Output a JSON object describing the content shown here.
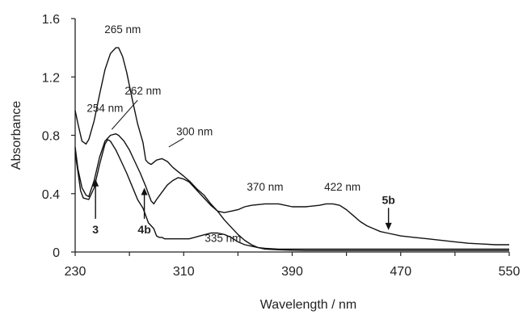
{
  "chart_data": {
    "type": "line",
    "xlabel": "Wavelength / nm",
    "ylabel": "Absorbance",
    "xlim": [
      230,
      550
    ],
    "ylim": [
      0,
      1.6
    ],
    "xticks": [
      "230",
      "270",
      "310",
      "350",
      "390",
      "430",
      "470",
      "510",
      "550"
    ],
    "x_tick_labels_shown": [
      "230",
      "310",
      "390",
      "470",
      "550"
    ],
    "yticks": [
      "0",
      "0.4",
      "0.8",
      "1.2",
      "1.6"
    ],
    "grid": false,
    "series": [
      {
        "name": "3",
        "x": [
          230,
          232,
          235,
          238,
          240,
          244,
          248,
          252,
          256,
          260,
          262,
          265,
          268,
          272,
          276,
          280,
          282,
          284,
          286,
          290,
          294,
          298,
          302,
          306,
          310,
          315,
          320,
          325,
          330,
          335,
          340,
          345,
          350,
          355,
          360,
          365,
          370,
          380,
          390,
          400,
          420,
          450,
          480,
          520,
          550
        ],
        "y": [
          0.97,
          0.88,
          0.76,
          0.74,
          0.77,
          0.9,
          1.08,
          1.25,
          1.36,
          1.4,
          1.4,
          1.34,
          1.23,
          1.05,
          0.88,
          0.75,
          0.63,
          0.61,
          0.6,
          0.63,
          0.64,
          0.62,
          0.58,
          0.55,
          0.52,
          0.48,
          0.43,
          0.39,
          0.33,
          0.28,
          0.22,
          0.17,
          0.12,
          0.08,
          0.05,
          0.03,
          0.02,
          0.015,
          0.012,
          0.01,
          0.01,
          0.01,
          0.01,
          0.01,
          0.01
        ]
      },
      {
        "name": "4b",
        "x": [
          230,
          232,
          234,
          236,
          240,
          244,
          248,
          252,
          254,
          256,
          260,
          264,
          268,
          272,
          276,
          280,
          282,
          284,
          286,
          288,
          290,
          292,
          294,
          296,
          298,
          300,
          302,
          304,
          306,
          310,
          314,
          318,
          322,
          326,
          330,
          335,
          340,
          345,
          350,
          355,
          360,
          365,
          370,
          380,
          390,
          400,
          420,
          450,
          480,
          520,
          550
        ],
        "y": [
          0.68,
          0.55,
          0.42,
          0.37,
          0.36,
          0.44,
          0.6,
          0.74,
          0.77,
          0.76,
          0.7,
          0.62,
          0.54,
          0.45,
          0.36,
          0.3,
          0.25,
          0.2,
          0.18,
          0.16,
          0.11,
          0.1,
          0.1,
          0.09,
          0.09,
          0.09,
          0.09,
          0.09,
          0.09,
          0.09,
          0.09,
          0.1,
          0.11,
          0.12,
          0.13,
          0.13,
          0.12,
          0.1,
          0.07,
          0.05,
          0.04,
          0.03,
          0.025,
          0.02,
          0.02,
          0.02,
          0.02,
          0.02,
          0.02,
          0.02,
          0.02
        ]
      },
      {
        "name": "5b",
        "x": [
          230,
          232,
          235,
          238,
          240,
          244,
          248,
          252,
          256,
          260,
          262,
          266,
          270,
          274,
          278,
          282,
          284,
          286,
          288,
          290,
          294,
          298,
          302,
          306,
          310,
          314,
          318,
          322,
          326,
          330,
          335,
          340,
          345,
          350,
          355,
          360,
          370,
          380,
          390,
          400,
          410,
          415,
          420,
          425,
          430,
          435,
          440,
          445,
          450,
          455,
          460,
          470,
          480,
          490,
          500,
          510,
          520,
          530,
          540,
          550
        ],
        "y": [
          0.72,
          0.57,
          0.44,
          0.39,
          0.38,
          0.49,
          0.65,
          0.76,
          0.8,
          0.81,
          0.8,
          0.76,
          0.7,
          0.62,
          0.54,
          0.45,
          0.4,
          0.35,
          0.33,
          0.36,
          0.41,
          0.46,
          0.49,
          0.51,
          0.5,
          0.48,
          0.44,
          0.4,
          0.36,
          0.32,
          0.28,
          0.27,
          0.28,
          0.29,
          0.31,
          0.32,
          0.33,
          0.33,
          0.31,
          0.31,
          0.32,
          0.33,
          0.33,
          0.32,
          0.29,
          0.25,
          0.21,
          0.18,
          0.16,
          0.14,
          0.13,
          0.11,
          0.1,
          0.09,
          0.08,
          0.07,
          0.06,
          0.055,
          0.05,
          0.05
        ]
      }
    ],
    "annotations": [
      {
        "text": "265 nm",
        "x": 265,
        "y": 1.5
      },
      {
        "text": "262 nm",
        "x": 280,
        "y": 1.08
      },
      {
        "text": "254 nm",
        "x": 252,
        "y": 0.96
      },
      {
        "text": "300 nm",
        "x": 318,
        "y": 0.8
      },
      {
        "text": "370 nm",
        "x": 370,
        "y": 0.42
      },
      {
        "text": "422 nm",
        "x": 427,
        "y": 0.42
      },
      {
        "text": "335 nm",
        "x": 339,
        "y": 0.07
      }
    ],
    "annotation_lines": [
      {
        "x1": 276,
        "y1": 1.04,
        "x2": 257,
        "y2": 0.84
      },
      {
        "x1": 310,
        "y1": 0.78,
        "x2": 299,
        "y2": 0.72
      }
    ],
    "arrows": [
      {
        "label": "3",
        "x": 245,
        "y_label": 0.15,
        "y_tip": 0.5,
        "direction": "up"
      },
      {
        "label": "4b",
        "x": 281,
        "y_label": 0.15,
        "y_tip": 0.44,
        "direction": "up"
      },
      {
        "label": "5b",
        "x": 461,
        "y_label": 0.33,
        "y_tip": 0.15,
        "direction": "down"
      }
    ]
  }
}
